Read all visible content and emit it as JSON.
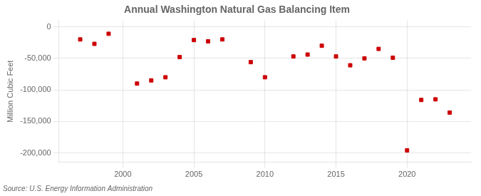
{
  "chart_data": {
    "type": "scatter",
    "title": "Annual Washington Natural Gas Balancing Item",
    "ylabel": "Million Cubic Feet",
    "source": "Source: U.S. Energy Information Administration",
    "x": [
      1997,
      1998,
      1999,
      2001,
      2002,
      2003,
      2004,
      2005,
      2006,
      2007,
      2009,
      2010,
      2012,
      2013,
      2014,
      2015,
      2016,
      2017,
      2018,
      2019,
      2020,
      2021,
      2022,
      2023
    ],
    "values": [
      -20000,
      -27000,
      -11000,
      -90000,
      -85000,
      -80000,
      -48000,
      -21000,
      -23000,
      -20000,
      -56000,
      -80000,
      -47000,
      -44000,
      -30000,
      -47000,
      -61000,
      -50000,
      -35000,
      -49000,
      -196000,
      -116000,
      -115000,
      -136000
    ],
    "color": "#cc0000",
    "marker": "square",
    "xlim": [
      1995.5,
      2024.5
    ],
    "xticks": [
      2000,
      2005,
      2010,
      2015,
      2020
    ],
    "ylim": [
      -215000,
      10000
    ],
    "yticks": [
      0,
      {
        "value": -50000,
        "label": "-50,000"
      },
      {
        "value": -100000,
        "label": "-100,000"
      },
      {
        "value": -150000,
        "label": "-150,000"
      },
      {
        "value": -200000,
        "label": "-200,000"
      }
    ],
    "grid": true
  }
}
